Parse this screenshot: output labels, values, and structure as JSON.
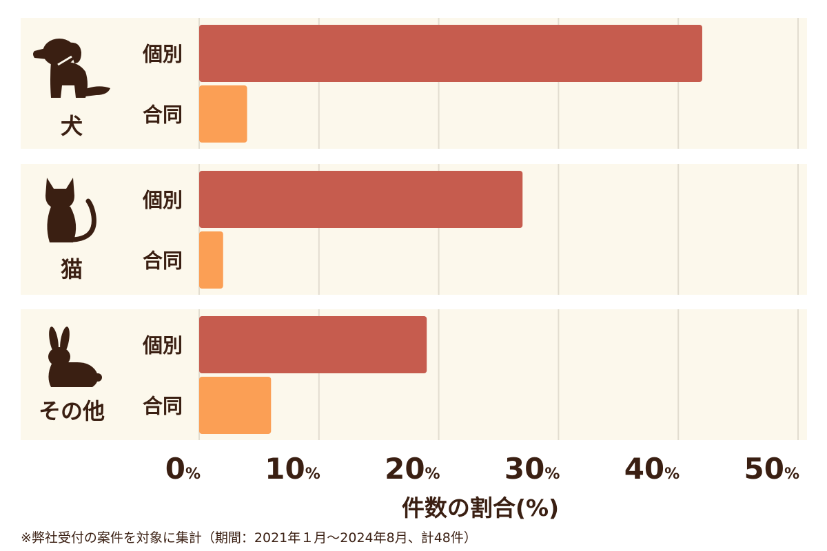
{
  "chart_data": {
    "type": "bar",
    "orientation": "horizontal",
    "categories": [
      "犬",
      "猫",
      "その他"
    ],
    "series": [
      {
        "name": "個別",
        "values": [
          42.0,
          27.0,
          19.0
        ]
      },
      {
        "name": "合同",
        "values": [
          4.0,
          2.0,
          6.0
        ]
      }
    ],
    "xlabel": "件数の割合(%)",
    "xlim": [
      0,
      50
    ],
    "xticks": [
      0,
      10,
      20,
      30,
      40,
      50
    ],
    "tick_unit": "%",
    "grid": true
  },
  "colors": {
    "個別": "#c65c4e",
    "合同": "#fb9f55",
    "panel_bg": "#fcf8ec",
    "grid": "#e2ddd0",
    "text": "#3a1f12"
  },
  "icons": [
    "dog-icon",
    "cat-icon",
    "rabbit-icon"
  ],
  "footnote": "※弊社受付の案件を対象に集計（期間：2021年１月～2024年8月、計48件）"
}
